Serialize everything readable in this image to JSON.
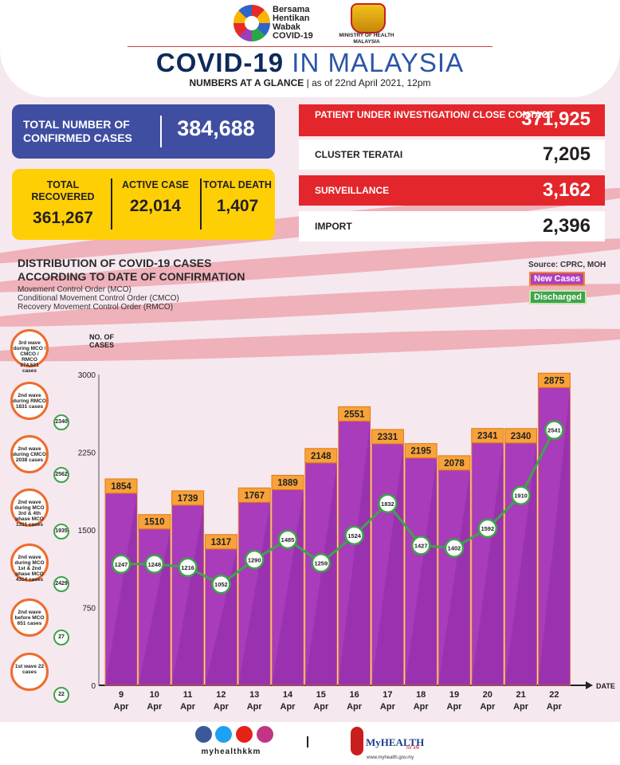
{
  "header": {
    "slogan": [
      "Bersama",
      "Hentikan",
      "Wabak",
      "COVID-19"
    ],
    "ministry": "MINISTRY OF HEALTH MALAYSIA",
    "title_left": "COVID-19",
    "title_right": "IN MALAYSIA",
    "subtitle_bold": "NUMBERS AT A GLANCE",
    "subtitle_date": "as of 22nd April 2021, 12pm"
  },
  "stats": {
    "confirmed_label": "TOTAL NUMBER OF CONFIRMED CASES",
    "confirmed_value": "384,688",
    "recovered_label": "TOTAL RECOVERED",
    "recovered_value": "361,267",
    "active_label": "ACTIVE CASE",
    "active_value": "22,014",
    "death_label": "TOTAL DEATH",
    "death_value": "1,407"
  },
  "right_stats": [
    {
      "label": "PATIENT UNDER INVESTIGATION/ CLOSE CONTACT",
      "value": "371,925",
      "style": "red"
    },
    {
      "label": "CLUSTER TERATAI",
      "value": "7,205",
      "style": "white"
    },
    {
      "label": "SURVEILLANCE",
      "value": "3,162",
      "style": "red"
    },
    {
      "label": "IMPORT",
      "value": "2,396",
      "style": "white"
    }
  ],
  "distribution": {
    "title_line1": "DISTRIBUTION OF COVID-19 CASES",
    "title_line2": "ACCORDING TO DATE OF CONFIRMATION",
    "notes": [
      "Movement Control Order (MCO)",
      "Conditional Movement Control Order (CMCO)",
      "Recovery Movement Control Order (RMCO)"
    ],
    "source": "Source: CPRC, MOH"
  },
  "waves": [
    {
      "text": "3rd wave during MCO / CMCO / RMCO 374,521 cases",
      "count": ""
    },
    {
      "text": "2nd wave during RMCO 1831 cases",
      "count": "2340"
    },
    {
      "text": "2nd wave during CMCO 2038 cases",
      "count": "2562"
    },
    {
      "text": "2nd wave during MCO 3rd & 4th phase MCO 1311 cases",
      "count": "1935"
    },
    {
      "text": "2nd wave during MCO 1st & 2nd phase MCO 4314 cases",
      "count": "2429"
    },
    {
      "text": "2nd wave before MCO 651 cases",
      "count": "27"
    },
    {
      "text": "1st wave 22 cases",
      "count": "22"
    }
  ],
  "footer": {
    "handle": "myhealthkkm",
    "brand": "MyHEALTH",
    "brand_sub": "for life",
    "url": "www.myhealth.gov.my"
  },
  "colors": {
    "bar": "#a83cbb",
    "bar_label": "#f7a23a",
    "line": "#3fa34a",
    "red": "#e3262b",
    "blue": "#3f4ea1",
    "yellow": "#ffcf06"
  },
  "chart_data": {
    "type": "bar",
    "categories": [
      "9 Apr",
      "10 Apr",
      "11 Apr",
      "12 Apr",
      "13 Apr",
      "14 Apr",
      "15 Apr",
      "16 Apr",
      "17 Apr",
      "18 Apr",
      "19 Apr",
      "20 Apr",
      "21 Apr",
      "22 Apr"
    ],
    "series": [
      {
        "name": "New Cases",
        "type": "bar",
        "values": [
          1854,
          1510,
          1739,
          1317,
          1767,
          1889,
          2148,
          2551,
          2331,
          2195,
          2078,
          2341,
          2340,
          2875
        ]
      },
      {
        "name": "Discharged",
        "type": "line",
        "values": [
          1247,
          1248,
          1216,
          1052,
          1290,
          1485,
          1259,
          1524,
          1832,
          1427,
          1402,
          1592,
          1910,
          2541
        ]
      }
    ],
    "ylabel": "NO. OF CASES",
    "xlabel": "DATE",
    "ylim": [
      0,
      3000
    ],
    "yticks": [
      0,
      750,
      1500,
      2250,
      3000
    ],
    "legend": "top-right"
  }
}
